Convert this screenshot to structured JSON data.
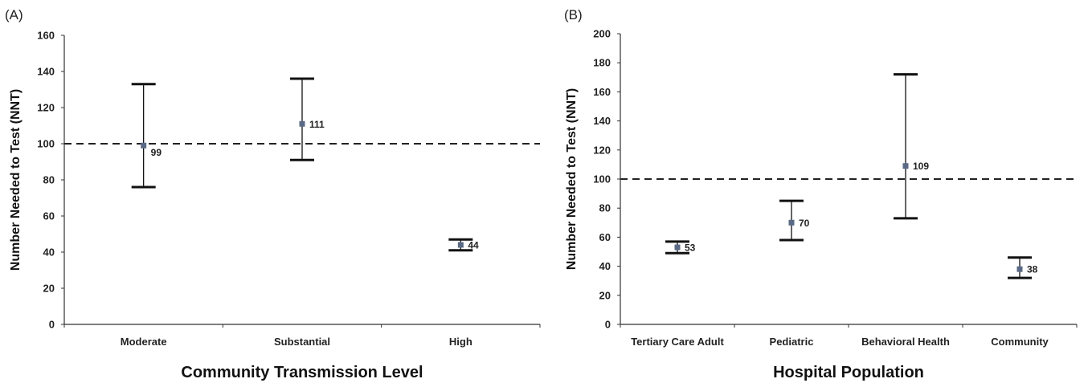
{
  "chart_data": [
    {
      "type": "scatter",
      "panel_label": "(A)",
      "title": "",
      "xlabel": "Community Transmission Level",
      "ylabel": "Number Needed to Test (NNT)",
      "ylim": [
        0,
        160
      ],
      "yticks": [
        0,
        20,
        40,
        60,
        80,
        100,
        120,
        140,
        160
      ],
      "categories": [
        "Moderate",
        "Substantial",
        "High"
      ],
      "values": [
        99,
        111,
        44
      ],
      "lower": [
        76,
        91,
        41
      ],
      "upper": [
        133,
        136,
        47
      ],
      "data_labels": [
        "99",
        "111",
        "44"
      ],
      "reference_line": 100,
      "grid": false,
      "marker_color": "#5a6a86"
    },
    {
      "type": "scatter",
      "panel_label": "(B)",
      "title": "",
      "xlabel": "Hospital Population",
      "ylabel": "Number Needed to Test (NNT)",
      "ylim": [
        0,
        200
      ],
      "yticks": [
        0,
        20,
        40,
        60,
        80,
        100,
        120,
        140,
        160,
        180,
        200
      ],
      "categories": [
        "Tertiary Care Adult",
        "Pediatric",
        "Behavioral Health",
        "Community"
      ],
      "values": [
        53,
        70,
        109,
        38
      ],
      "lower": [
        49,
        58,
        73,
        32
      ],
      "upper": [
        57,
        85,
        172,
        46
      ],
      "data_labels": [
        "53",
        "70",
        "109",
        "38"
      ],
      "reference_line": 100,
      "grid": false,
      "marker_color": "#5a6a86"
    }
  ]
}
